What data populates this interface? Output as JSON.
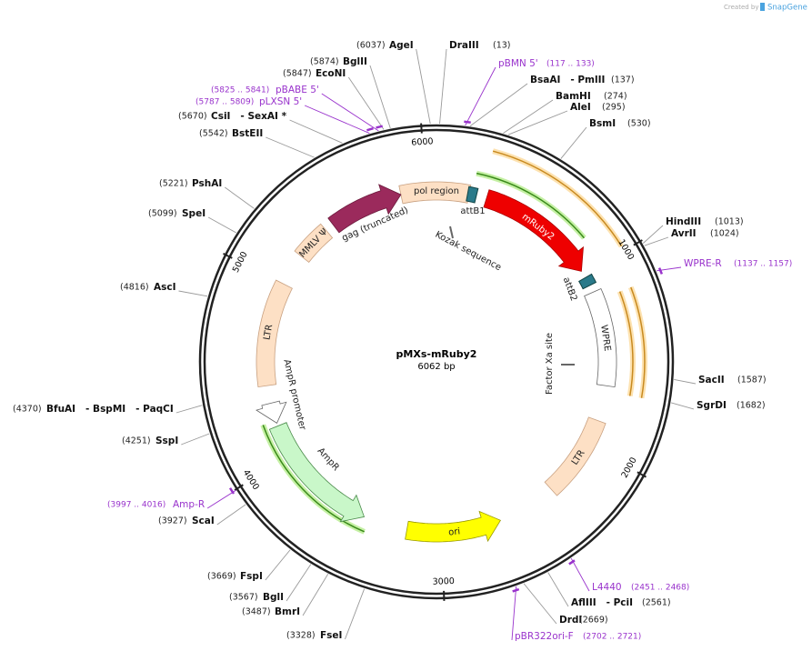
{
  "credit": {
    "prefix": "Created by",
    "brand": "SnapGene"
  },
  "map": {
    "title": "pMXs-mRuby2",
    "length": "6062 bp",
    "ticks": [
      1000,
      2000,
      3000,
      4000,
      5000,
      6000
    ]
  },
  "sites": [
    {
      "name": "AgeI",
      "position": "(6037)"
    },
    {
      "name": "DraIII",
      "position": "(13)"
    },
    {
      "name": "BglII",
      "position": "(5874)"
    },
    {
      "name": "EcoNI",
      "position": "(5847)"
    },
    {
      "name": "CsiI   - SexAI *",
      "position": "(5670)"
    },
    {
      "name": "BstEII",
      "position": "(5542)"
    },
    {
      "name": "PshAI",
      "position": "(5221)"
    },
    {
      "name": "SpeI",
      "position": "(5099)"
    },
    {
      "name": "AscI",
      "position": "(4816)"
    },
    {
      "name": "BfuAI   - BspMI   - PaqCI",
      "position": "(4370)"
    },
    {
      "name": "SspI",
      "position": "(4251)"
    },
    {
      "name": "ScaI",
      "position": "(3927)"
    },
    {
      "name": "FspI",
      "position": "(3669)"
    },
    {
      "name": "BglI",
      "position": "(3567)"
    },
    {
      "name": "BmrI",
      "position": "(3487)"
    },
    {
      "name": "FseI",
      "position": "(3328)"
    },
    {
      "name": "BsaAI   - PmlII",
      "position": "(137)"
    },
    {
      "name": "BamHI",
      "position": "(274)"
    },
    {
      "name": "AleI",
      "position": "(295)"
    },
    {
      "name": "BsmI",
      "position": "(530)"
    },
    {
      "name": "HindIII",
      "position": "(1013)"
    },
    {
      "name": "AvrII",
      "position": "(1024)"
    },
    {
      "name": "SacII",
      "position": "(1587)"
    },
    {
      "name": "SgrDI",
      "position": "(1682)"
    },
    {
      "name": "AflIII   - PciI",
      "position": "(2561)"
    },
    {
      "name": "DrdI",
      "position": "(2669)"
    }
  ],
  "primers": [
    {
      "name": "pBMN 5'",
      "range": "(117 .. 133)"
    },
    {
      "name": "pBABE 5'",
      "range": "(5825 .. 5841)"
    },
    {
      "name": "pLXSN 5'",
      "range": "(5787 .. 5809)"
    },
    {
      "name": "WPRE-R",
      "range": "(1137 .. 1157)"
    },
    {
      "name": "Amp-R",
      "range": "(3997 .. 4016)"
    },
    {
      "name": "L4440",
      "range": "(2451 .. 2468)"
    },
    {
      "name": "pBR322ori-F",
      "range": "(2702 .. 2721)"
    }
  ],
  "features": [
    "pol region",
    "gag (truncated)",
    "MMLV Ψ",
    "LTR",
    "AmpR promoter",
    "AmpR",
    "ori",
    "LTR",
    "WPRE",
    "mRuby2"
  ],
  "annotations": [
    "attB1",
    "attB2",
    "Kozak sequence",
    "Factor Xa site"
  ]
}
